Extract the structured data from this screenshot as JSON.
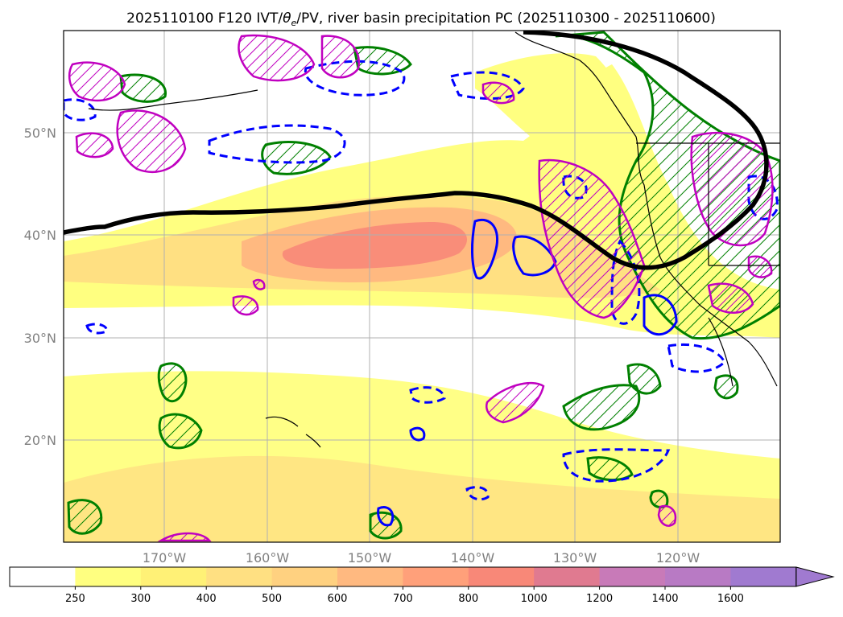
{
  "title": "2025110100 F120 IVT/θe/PV, river basin precipitation PC (2025110300 - 2025110600)",
  "title_parts": {
    "prefix": "2025110100 F120 IVT/",
    "theta": "θ",
    "sub": "e",
    "suffix": "/PV, river basin precipitation PC (2025110300 - 2025110600)"
  },
  "map": {
    "lon_range": [
      -180,
      -110
    ],
    "lat_range": [
      10,
      60
    ],
    "lat_labels": [
      "50°N",
      "40°N",
      "30°N",
      "20°N"
    ],
    "lon_labels": [
      "170°W",
      "160°W",
      "150°W",
      "140°W",
      "130°W",
      "120°W"
    ]
  },
  "colorbar": {
    "ticks": [
      "250",
      "300",
      "400",
      "500",
      "600",
      "700",
      "800",
      "1000",
      "1200",
      "1400",
      "1600"
    ],
    "colors": [
      "#ffffff",
      "#ffff80",
      "#fff176",
      "#ffe082",
      "#ffd180",
      "#ffb980",
      "#ffa07a",
      "#f88878",
      "#e07a90",
      "#c87ab8",
      "#b87ac4",
      "#a07ad0"
    ],
    "extend": "max"
  },
  "colors": {
    "ivt_low": "#ffff80",
    "ivt_mid": "#ffd180",
    "ivt_high": "#f88878",
    "pv_contour": "#000000",
    "theta_pos": "#008000",
    "theta_neg": "#0000ff",
    "precip": "#c000c0"
  }
}
